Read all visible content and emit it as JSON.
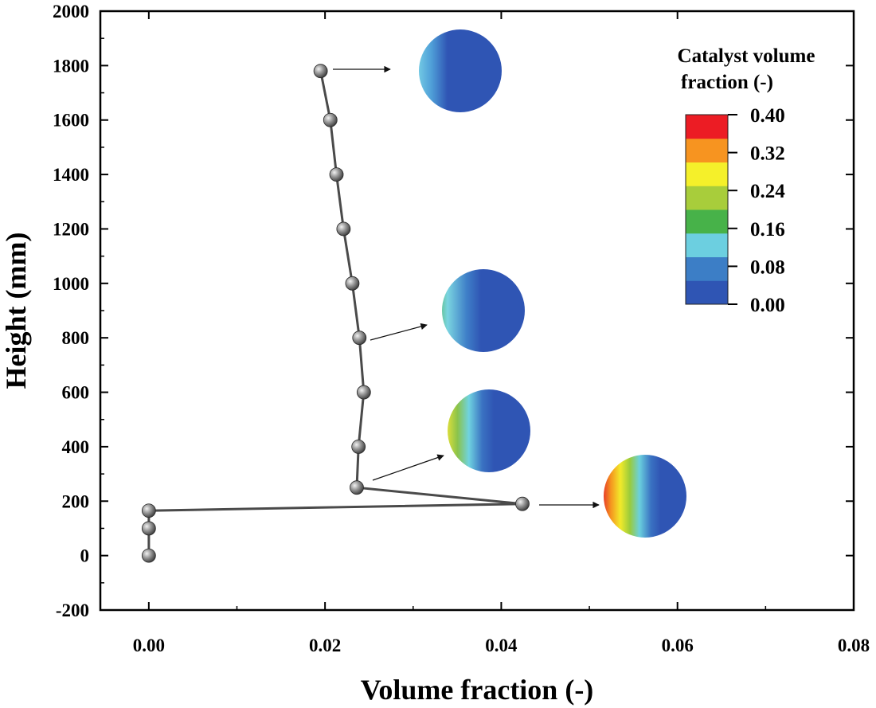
{
  "chart_data": {
    "type": "line",
    "title": "",
    "xlabel": "Volume fraction (-)",
    "ylabel": "Height (mm)",
    "xlim": [
      -0.0055,
      0.08
    ],
    "ylim": [
      -200,
      2000
    ],
    "xticks": [
      0.0,
      0.02,
      0.04,
      0.06,
      0.08
    ],
    "xtick_labels": [
      "0.00",
      "0.02",
      "0.04",
      "0.06",
      "0.08"
    ],
    "yticks": [
      -200,
      0,
      200,
      400,
      600,
      800,
      1000,
      1200,
      1400,
      1600,
      1800,
      2000
    ],
    "ytick_labels": [
      "-200",
      "0",
      "200",
      "400",
      "600",
      "800",
      "1000",
      "1200",
      "1400",
      "1600",
      "1800",
      "2000"
    ],
    "grid": false,
    "series": [
      {
        "name": "Catalyst volume fraction",
        "x": [
          0.0,
          0.0,
          0.0,
          0.0424,
          0.0236,
          0.0238,
          0.0244,
          0.0239,
          0.0231,
          0.0221,
          0.0213,
          0.0206,
          0.0195
        ],
        "y": [
          0,
          100,
          165,
          190,
          250,
          400,
          600,
          800,
          1000,
          1200,
          1400,
          1600,
          1780
        ]
      }
    ],
    "annotations": [
      {
        "from": [
          0.0195,
          1780
        ],
        "type": "contour-inset",
        "description": "cross-section at 1780 mm"
      },
      {
        "from": [
          0.0239,
          800
        ],
        "type": "contour-inset",
        "description": "cross-section at 800 mm"
      },
      {
        "from": [
          0.0236,
          250
        ],
        "type": "contour-inset",
        "description": "cross-section at 250 mm"
      },
      {
        "from": [
          0.0424,
          190
        ],
        "type": "contour-inset",
        "description": "cross-section at 190 mm"
      }
    ],
    "colorbar": {
      "title_line1": "Catalyst volume",
      "title_line2": "fraction (-)",
      "ticks": [
        0.0,
        0.08,
        0.16,
        0.24,
        0.32,
        0.4
      ],
      "tick_labels": [
        "0.00",
        "0.08",
        "0.16",
        "0.24",
        "0.32",
        "0.40"
      ],
      "colors_bottom_to_top": [
        "#2f55b4",
        "#3c7ec6",
        "#6ccfe0",
        "#47b249",
        "#a8cd3b",
        "#f5f02a",
        "#f79420",
        "#ec1c24"
      ]
    }
  }
}
